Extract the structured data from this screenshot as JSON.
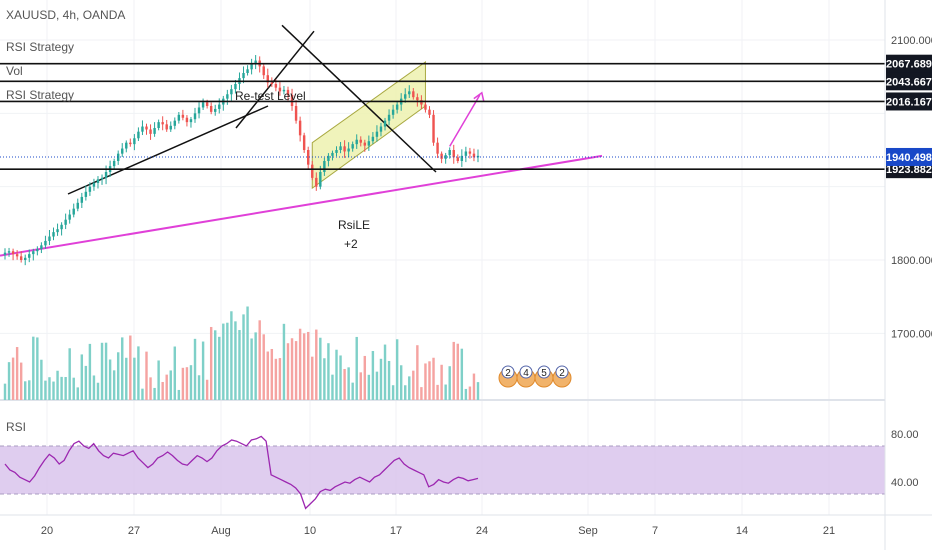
{
  "header": {
    "symbol": "XAUUSD, 4h, OANDA",
    "studies": [
      "RSI Strategy",
      "Vol",
      "RSI Strategy"
    ]
  },
  "rsi_pane": {
    "label": "RSI"
  },
  "colors": {
    "up": "#26a69a",
    "down": "#ef5350",
    "vol_up": "#7fd0c8",
    "vol_down": "#f5a3a1",
    "channel_fill": "#eef2b0",
    "trendline": "#e040d8",
    "rsi_line": "#9c27b0",
    "rsi_band": "#d9c4ec",
    "price_line": "#1848c8"
  },
  "chart_data": {
    "type": "candlestick",
    "symbol": "XAUUSD",
    "timeframe": "4h",
    "source": "OANDA",
    "price_axis_ticks": [
      2100,
      1800,
      1700
    ],
    "price_tick_labels": [
      "2100.000",
      "1800.000",
      "1700.000"
    ],
    "price_range": [
      1600,
      2150
    ],
    "date_ticks": [
      "20",
      "27",
      "Aug",
      "10",
      "17",
      "24",
      "Sep",
      "7",
      "14",
      "21"
    ],
    "horizontal_levels": [
      {
        "label": "2067.689",
        "value": 2067.689
      },
      {
        "label": "2043.667",
        "value": 2043.667
      },
      {
        "label": "2016.167",
        "value": 2016.167
      },
      {
        "label": "1923.882",
        "value": 1923.882
      }
    ],
    "current_price": {
      "label": "1940.498",
      "value": 1940.498
    },
    "closes": [
      1810,
      1812,
      1808,
      1805,
      1800,
      1803,
      1808,
      1812,
      1815,
      1820,
      1826,
      1832,
      1838,
      1842,
      1848,
      1855,
      1862,
      1870,
      1878,
      1886,
      1893,
      1900,
      1905,
      1910,
      1912,
      1920,
      1928,
      1935,
      1945,
      1952,
      1960,
      1958,
      1966,
      1975,
      1982,
      1978,
      1972,
      1980,
      1988,
      1985,
      1978,
      1983,
      1990,
      1998,
      1994,
      1988,
      1992,
      2000,
      2008,
      2015,
      2010,
      2002,
      2006,
      2012,
      2020,
      2026,
      2033,
      2040,
      2048,
      2055,
      2060,
      2068,
      2072,
      2064,
      2052,
      2042,
      2040,
      2035,
      2030,
      2032,
      2025,
      2010,
      1990,
      1970,
      1950,
      1930,
      1912,
      1900,
      1920,
      1935,
      1942,
      1946,
      1950,
      1955,
      1948,
      1952,
      1958,
      1964,
      1960,
      1956,
      1962,
      1968,
      1975,
      1982,
      1990,
      1998,
      2005,
      2012,
      2020,
      2026,
      2030,
      2022,
      2018,
      2012,
      2005,
      1998,
      1960,
      1945,
      1938,
      1943,
      1950,
      1940,
      1935,
      1942,
      1948,
      1945,
      1940,
      1942
    ],
    "rsi_axis_ticks": [
      80,
      40
    ],
    "rsi_tick_labels": [
      "80.00",
      "40.00"
    ],
    "rsi_band": [
      30,
      70
    ],
    "rsi_values": [
      55,
      50,
      48,
      44,
      42,
      40,
      45,
      52,
      58,
      63,
      60,
      55,
      58,
      66,
      72,
      74,
      70,
      68,
      72,
      66,
      62,
      60,
      64,
      63,
      62,
      64,
      66,
      60,
      56,
      52,
      55,
      60,
      62,
      65,
      62,
      58,
      55,
      54,
      58,
      62,
      60,
      57,
      60,
      66,
      70,
      72,
      75,
      74,
      72,
      70,
      75,
      76,
      78,
      74,
      46,
      44,
      42,
      40,
      38,
      35,
      30,
      18,
      22,
      26,
      32,
      34,
      33,
      36,
      38,
      40,
      39,
      42,
      44,
      42,
      40,
      44,
      46,
      50,
      54,
      58,
      60,
      55,
      52,
      50,
      48,
      46,
      36,
      38,
      42,
      40,
      39,
      42,
      44,
      43,
      41,
      42,
      43
    ],
    "annotations": [
      "Re-test Level",
      "RsiLE",
      "+2"
    ],
    "event_badges": [
      "2",
      "4",
      "5",
      "2"
    ]
  }
}
